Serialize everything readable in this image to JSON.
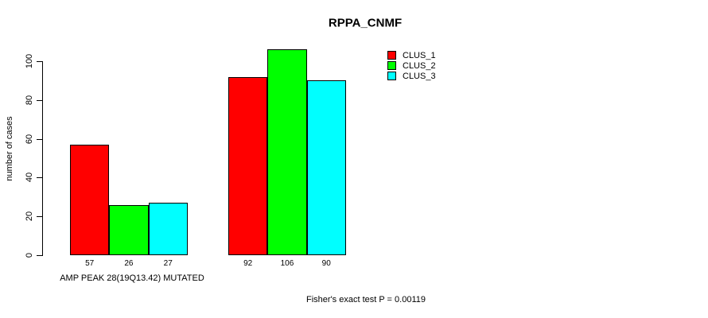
{
  "title": "RPPA_CNMF",
  "ylabel": "number of cases",
  "xlabel": "AMP PEAK 28(19Q13.42) MUTATED",
  "footnote": "Fisher's exact test P = 0.00119",
  "legend": [
    {
      "label": "CLUS_1",
      "color": "#FF0000"
    },
    {
      "label": "CLUS_2",
      "color": "#00FF00"
    },
    {
      "label": "CLUS_3",
      "color": "#00FFFF"
    }
  ],
  "chart_data": {
    "type": "bar",
    "title": "RPPA_CNMF",
    "ylabel": "number of cases",
    "xlabel": "AMP PEAK 28(19Q13.42) MUTATED",
    "categories": [
      "AMP PEAK 28(19Q13.42) MUTATED",
      ""
    ],
    "series": [
      {
        "name": "CLUS_1",
        "color": "#FF0000",
        "values": [
          57,
          92
        ]
      },
      {
        "name": "CLUS_2",
        "color": "#00FF00",
        "values": [
          26,
          106
        ]
      },
      {
        "name": "CLUS_3",
        "color": "#00FFFF",
        "values": [
          27,
          90
        ]
      }
    ],
    "yticks": [
      0,
      20,
      40,
      60,
      80,
      100
    ],
    "ylim": [
      0,
      110
    ],
    "grid": false,
    "bar_value_labels": true,
    "legend_position": "top-right",
    "annotation": "Fisher's exact test P = 0.00119"
  }
}
